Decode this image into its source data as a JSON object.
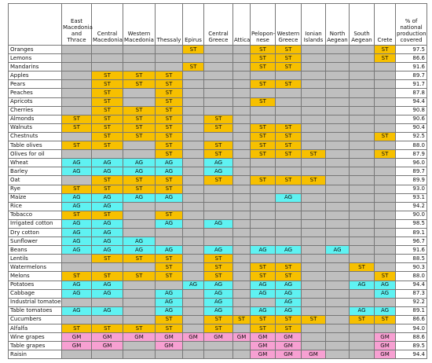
{
  "table": {
    "header": [
      "East Macedonia and Thrace",
      "Central Macedonia",
      "Western Macedonia",
      "Thessaly",
      "Epirus",
      "Central Greece",
      "Attica",
      "Pelopon-nese",
      "Western Greece",
      "Ionian Islands",
      "North Aegean",
      "South Aegean",
      "Crete",
      "% of national production covered"
    ],
    "cell_colors": {
      "ST": "#f7c000",
      "AG": "#5ff2f2",
      "GM": "#f7a0d2"
    },
    "blank_color": "#bfbfbf",
    "rows": [
      {
        "crop": "Oranges",
        "cells": [
          null,
          null,
          null,
          null,
          "ST",
          null,
          null,
          "ST",
          "ST",
          null,
          null,
          null,
          "ST"
        ],
        "percent": "97.5"
      },
      {
        "crop": "Lemons",
        "cells": [
          null,
          null,
          null,
          null,
          null,
          null,
          null,
          "ST",
          "ST",
          null,
          null,
          null,
          "ST"
        ],
        "percent": "86.6"
      },
      {
        "crop": "Mandarins",
        "cells": [
          null,
          null,
          null,
          null,
          "ST",
          null,
          null,
          "ST",
          "ST",
          null,
          null,
          null,
          null
        ],
        "percent": "91.6"
      },
      {
        "crop": "Apples",
        "cells": [
          null,
          "ST",
          "ST",
          "ST",
          null,
          null,
          null,
          null,
          null,
          null,
          null,
          null,
          null
        ],
        "percent": "89.7"
      },
      {
        "crop": "Pears",
        "cells": [
          null,
          "ST",
          "ST",
          "ST",
          null,
          null,
          null,
          "ST",
          "ST",
          null,
          null,
          null,
          null
        ],
        "percent": "91.7"
      },
      {
        "crop": "Peaches",
        "cells": [
          null,
          "ST",
          null,
          "ST",
          null,
          null,
          null,
          null,
          null,
          null,
          null,
          null,
          null
        ],
        "percent": "87.8"
      },
      {
        "crop": "Apricots",
        "cells": [
          null,
          "ST",
          null,
          "ST",
          null,
          null,
          null,
          "ST",
          null,
          null,
          null,
          null,
          null
        ],
        "percent": "94.4"
      },
      {
        "crop": "Cherries",
        "cells": [
          null,
          "ST",
          "ST",
          "ST",
          null,
          null,
          null,
          null,
          null,
          null,
          null,
          null,
          null
        ],
        "percent": "90.8"
      },
      {
        "crop": "Almonds",
        "cells": [
          "ST",
          "ST",
          "ST",
          "ST",
          null,
          "ST",
          null,
          null,
          null,
          null,
          null,
          null,
          null
        ],
        "percent": "90.6"
      },
      {
        "crop": "Walnuts",
        "cells": [
          "ST",
          "ST",
          "ST",
          "ST",
          null,
          "ST",
          null,
          "ST",
          "ST",
          null,
          null,
          null,
          null
        ],
        "percent": "90.4"
      },
      {
        "crop": "Chestnuts",
        "cells": [
          null,
          "ST",
          "ST",
          "ST",
          null,
          null,
          null,
          "ST",
          "ST",
          null,
          null,
          null,
          "ST"
        ],
        "percent": "92.5"
      },
      {
        "crop": "Table olives",
        "cells": [
          "ST",
          "ST",
          null,
          "ST",
          null,
          "ST",
          null,
          "ST",
          "ST",
          null,
          null,
          null,
          null
        ],
        "percent": "88.0"
      },
      {
        "crop": "Olives for oil",
        "cells": [
          null,
          null,
          null,
          "ST",
          null,
          "ST",
          null,
          "ST",
          "ST",
          "ST",
          null,
          null,
          "ST"
        ],
        "percent": "87.9"
      },
      {
        "crop": "Wheat",
        "cells": [
          "AG",
          "AG",
          "AG",
          "AG",
          null,
          "AG",
          null,
          null,
          null,
          null,
          null,
          null,
          null
        ],
        "percent": "96.0"
      },
      {
        "crop": "Barley",
        "cells": [
          "AG",
          "AG",
          "AG",
          "AG",
          null,
          "AG",
          null,
          null,
          null,
          null,
          null,
          null,
          null
        ],
        "percent": "89.7"
      },
      {
        "crop": "Oat",
        "cells": [
          null,
          "ST",
          "ST",
          "ST",
          null,
          "ST",
          null,
          "ST",
          "ST",
          "ST",
          null,
          null,
          null
        ],
        "percent": "89.9"
      },
      {
        "crop": "Rye",
        "cells": [
          "ST",
          "ST",
          "ST",
          "ST",
          null,
          null,
          null,
          null,
          null,
          null,
          null,
          null,
          null
        ],
        "percent": "93.0"
      },
      {
        "crop": "Maize",
        "cells": [
          "AG",
          "AG",
          "AG",
          "AG",
          null,
          null,
          null,
          null,
          "AG",
          null,
          null,
          null,
          null
        ],
        "percent": "93.1"
      },
      {
        "crop": "Rice",
        "cells": [
          "AG",
          "AG",
          null,
          null,
          null,
          null,
          null,
          null,
          null,
          null,
          null,
          null,
          null
        ],
        "percent": "94.2"
      },
      {
        "crop": "Tobacco",
        "cells": [
          "ST",
          "ST",
          null,
          "ST",
          null,
          null,
          null,
          null,
          null,
          null,
          null,
          null,
          null
        ],
        "percent": "90.0"
      },
      {
        "crop": "Irrigated cotton",
        "cells": [
          "AG",
          "AG",
          null,
          "AG",
          null,
          "AG",
          null,
          null,
          null,
          null,
          null,
          null,
          null
        ],
        "percent": "98.5"
      },
      {
        "crop": "Dry cotton",
        "cells": [
          "AG",
          "AG",
          null,
          null,
          null,
          null,
          null,
          null,
          null,
          null,
          null,
          null,
          null
        ],
        "percent": "89.1"
      },
      {
        "crop": "Sunflower",
        "cells": [
          "AG",
          "AG",
          "AG",
          null,
          null,
          null,
          null,
          null,
          null,
          null,
          null,
          null,
          null
        ],
        "percent": "96.7"
      },
      {
        "crop": "Beans",
        "cells": [
          "AG",
          "AG",
          "AG",
          "AG",
          null,
          "AG",
          null,
          "AG",
          "AG",
          null,
          "AG",
          null,
          null
        ],
        "percent": "91.6"
      },
      {
        "crop": "Lentils",
        "cells": [
          null,
          "ST",
          "ST",
          "ST",
          null,
          "ST",
          null,
          null,
          null,
          null,
          null,
          null,
          null
        ],
        "percent": "88.5"
      },
      {
        "crop": "Watermelons",
        "cells": [
          null,
          null,
          null,
          "ST",
          null,
          "ST",
          null,
          "ST",
          "ST",
          null,
          null,
          "ST",
          null
        ],
        "percent": "90.3"
      },
      {
        "crop": "Melons",
        "cells": [
          "ST",
          "ST",
          "ST",
          "ST",
          null,
          "ST",
          null,
          "ST",
          "ST",
          null,
          null,
          null,
          "ST"
        ],
        "percent": "88.0"
      },
      {
        "crop": "Potatoes",
        "cells": [
          "AG",
          "AG",
          null,
          null,
          "AG",
          "AG",
          null,
          "AG",
          "AG",
          null,
          null,
          "AG",
          "AG"
        ],
        "percent": "94.4"
      },
      {
        "crop": "Cabbage",
        "cells": [
          "AG",
          "AG",
          null,
          "AG",
          null,
          "AG",
          null,
          "AG",
          "AG",
          null,
          null,
          null,
          "AG"
        ],
        "percent": "87.3"
      },
      {
        "crop": "Industrial tomatoes",
        "cells": [
          null,
          null,
          null,
          "AG",
          null,
          "AG",
          null,
          null,
          "AG",
          null,
          null,
          null,
          null
        ],
        "percent": "92.2"
      },
      {
        "crop": "Table tomatoes",
        "cells": [
          "AG",
          "AG",
          null,
          "AG",
          null,
          "AG",
          null,
          "AG",
          "AG",
          null,
          null,
          "AG",
          "AG"
        ],
        "percent": "89.1"
      },
      {
        "crop": "Cucumbers",
        "cells": [
          null,
          null,
          null,
          "ST",
          null,
          "ST",
          "ST",
          "ST",
          "ST",
          "ST",
          null,
          "ST",
          "ST"
        ],
        "percent": "86.6"
      },
      {
        "crop": "Alfalfa",
        "cells": [
          "ST",
          "ST",
          "ST",
          "ST",
          null,
          "ST",
          null,
          "ST",
          "ST",
          null,
          null,
          null,
          null
        ],
        "percent": "94.0"
      },
      {
        "crop": "Wine grapes",
        "cells": [
          "GM",
          "GM",
          "GM",
          "GM",
          "GM",
          "GM",
          "GM",
          "GM",
          "GM",
          null,
          null,
          null,
          "GM"
        ],
        "percent": "88.6"
      },
      {
        "crop": "Table grapes",
        "cells": [
          "GM",
          "GM",
          null,
          "GM",
          null,
          null,
          null,
          "GM",
          "GM",
          null,
          null,
          null,
          "GM"
        ],
        "percent": "89.5"
      },
      {
        "crop": "Raisin",
        "cells": [
          null,
          null,
          null,
          null,
          null,
          null,
          null,
          "GM",
          "GM",
          "GM",
          null,
          null,
          "GM"
        ],
        "percent": "94.4"
      }
    ]
  }
}
